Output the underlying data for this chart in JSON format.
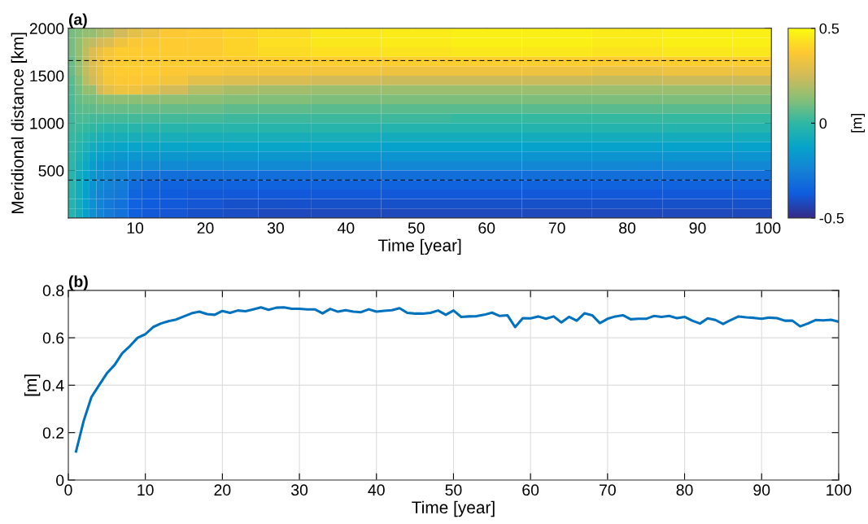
{
  "chart_data": [
    {
      "type": "heatmap",
      "title": "(a)",
      "xlabel": "Time [year]",
      "ylabel": "Meridional distance [km]",
      "clabel": "[m]",
      "xlim": [
        0.5,
        100.5
      ],
      "ylim": [
        0,
        2000
      ],
      "xticks": [
        10,
        20,
        30,
        40,
        50,
        60,
        70,
        80,
        90,
        100
      ],
      "yticks": [
        500,
        1000,
        1500,
        2000
      ],
      "clim": [
        -0.5,
        0.5
      ],
      "cticks": [
        -0.5,
        0,
        0.5
      ],
      "x": [
        1,
        2,
        3,
        4,
        5,
        6,
        8,
        10,
        12,
        15,
        20,
        25,
        30,
        40,
        50,
        60,
        70,
        80,
        90,
        100
      ],
      "y": [
        1950,
        1850,
        1750,
        1650,
        1550,
        1450,
        1350,
        1250,
        1150,
        1050,
        950,
        850,
        750,
        650,
        550,
        450,
        350,
        250,
        150,
        50
      ],
      "cells": [
        [
          0.1,
          0.12,
          0.15,
          0.15,
          0.18,
          0.2,
          0.25,
          0.3,
          0.33,
          0.37,
          0.38,
          0.4,
          0.42,
          0.45,
          0.46,
          0.47,
          0.47,
          0.46,
          0.47,
          0.47
        ],
        [
          0.1,
          0.15,
          0.2,
          0.22,
          0.25,
          0.28,
          0.33,
          0.36,
          0.37,
          0.38,
          0.38,
          0.4,
          0.43,
          0.45,
          0.46,
          0.47,
          0.47,
          0.46,
          0.47,
          0.47
        ],
        [
          0.1,
          0.15,
          0.22,
          0.28,
          0.32,
          0.35,
          0.38,
          0.38,
          0.38,
          0.38,
          0.38,
          0.4,
          0.42,
          0.43,
          0.44,
          0.45,
          0.45,
          0.44,
          0.45,
          0.45
        ],
        [
          0.08,
          0.15,
          0.22,
          0.28,
          0.33,
          0.36,
          0.38,
          0.38,
          0.38,
          0.38,
          0.38,
          0.38,
          0.39,
          0.39,
          0.39,
          0.39,
          0.39,
          0.38,
          0.39,
          0.39
        ],
        [
          0.08,
          0.15,
          0.22,
          0.27,
          0.32,
          0.36,
          0.38,
          0.38,
          0.38,
          0.37,
          0.36,
          0.35,
          0.35,
          0.34,
          0.33,
          0.33,
          0.33,
          0.32,
          0.33,
          0.33
        ],
        [
          0.06,
          0.12,
          0.2,
          0.25,
          0.3,
          0.35,
          0.37,
          0.37,
          0.36,
          0.34,
          0.3,
          0.28,
          0.27,
          0.25,
          0.24,
          0.24,
          0.24,
          0.23,
          0.24,
          0.24
        ],
        [
          0.05,
          0.1,
          0.15,
          0.15,
          0.25,
          0.3,
          0.33,
          0.33,
          0.3,
          0.25,
          0.2,
          0.18,
          0.17,
          0.16,
          0.16,
          0.16,
          0.16,
          0.16,
          0.16,
          0.16
        ],
        [
          0.04,
          0.08,
          0.1,
          0.1,
          0.12,
          0.13,
          0.14,
          0.13,
          0.14,
          0.14,
          0.13,
          0.12,
          0.12,
          0.11,
          0.11,
          0.11,
          0.11,
          0.11,
          0.11,
          0.11
        ],
        [
          0.03,
          0.06,
          0.07,
          0.07,
          0.08,
          0.08,
          0.08,
          0.08,
          0.08,
          0.08,
          0.08,
          0.07,
          0.07,
          0.06,
          0.06,
          0.06,
          0.06,
          0.06,
          0.06,
          0.06
        ],
        [
          0.02,
          0.04,
          0.04,
          0.03,
          0.03,
          0.03,
          0.03,
          0.03,
          0.03,
          0.03,
          0.03,
          0.02,
          0.02,
          0.02,
          0.02,
          0.01,
          0.01,
          0.01,
          0.01,
          0.01
        ],
        [
          0.02,
          0.02,
          0.01,
          0,
          -0.01,
          -0.02,
          -0.02,
          -0.02,
          -0.02,
          -0.02,
          -0.02,
          -0.02,
          -0.02,
          -0.02,
          -0.03,
          -0.03,
          -0.03,
          -0.03,
          -0.03,
          -0.03
        ],
        [
          0.01,
          0,
          -0.02,
          -0.04,
          -0.06,
          -0.07,
          -0.07,
          -0.07,
          -0.07,
          -0.07,
          -0.07,
          -0.07,
          -0.07,
          -0.07,
          -0.08,
          -0.08,
          -0.08,
          -0.08,
          -0.08,
          -0.08
        ],
        [
          0,
          -0.02,
          -0.05,
          -0.08,
          -0.1,
          -0.11,
          -0.12,
          -0.12,
          -0.12,
          -0.12,
          -0.12,
          -0.12,
          -0.12,
          -0.12,
          -0.13,
          -0.13,
          -0.13,
          -0.13,
          -0.13,
          -0.13
        ],
        [
          0,
          -0.04,
          -0.08,
          -0.12,
          -0.14,
          -0.16,
          -0.17,
          -0.17,
          -0.17,
          -0.17,
          -0.17,
          -0.17,
          -0.17,
          -0.18,
          -0.18,
          -0.18,
          -0.18,
          -0.18,
          -0.18,
          -0.18
        ],
        [
          -0.01,
          -0.06,
          -0.1,
          -0.15,
          -0.18,
          -0.2,
          -0.21,
          -0.21,
          -0.22,
          -0.22,
          -0.22,
          -0.22,
          -0.22,
          -0.23,
          -0.23,
          -0.23,
          -0.23,
          -0.23,
          -0.23,
          -0.23
        ],
        [
          -0.02,
          -0.08,
          -0.12,
          -0.17,
          -0.2,
          -0.22,
          -0.24,
          -0.27,
          -0.3,
          -0.31,
          -0.31,
          -0.31,
          -0.31,
          -0.31,
          -0.31,
          -0.31,
          -0.31,
          -0.31,
          -0.31,
          -0.31
        ],
        [
          -0.02,
          -0.08,
          -0.13,
          -0.18,
          -0.22,
          -0.24,
          -0.26,
          -0.32,
          -0.34,
          -0.35,
          -0.35,
          -0.35,
          -0.35,
          -0.35,
          -0.35,
          -0.35,
          -0.35,
          -0.35,
          -0.35,
          -0.35
        ],
        [
          -0.03,
          -0.08,
          -0.14,
          -0.2,
          -0.24,
          -0.26,
          -0.28,
          -0.34,
          -0.36,
          -0.37,
          -0.38,
          -0.38,
          -0.38,
          -0.38,
          -0.38,
          -0.38,
          -0.38,
          -0.38,
          -0.38,
          -0.38
        ],
        [
          -0.03,
          -0.08,
          -0.14,
          -0.2,
          -0.24,
          -0.27,
          -0.3,
          -0.35,
          -0.37,
          -0.38,
          -0.39,
          -0.4,
          -0.4,
          -0.4,
          -0.4,
          -0.4,
          -0.4,
          -0.4,
          -0.4,
          -0.4
        ],
        [
          -0.03,
          -0.08,
          -0.14,
          -0.2,
          -0.24,
          -0.27,
          -0.3,
          -0.36,
          -0.38,
          -0.39,
          -0.4,
          -0.41,
          -0.42,
          -0.42,
          -0.42,
          -0.42,
          -0.42,
          -0.42,
          -0.42,
          -0.42
        ]
      ],
      "ref_lines": [
        {
          "axis": "y",
          "value": 1660,
          "color": "#000000",
          "line_style": "dashed"
        },
        {
          "axis": "y",
          "value": 400,
          "color": "#000000",
          "line_style": "dashed"
        }
      ]
    },
    {
      "type": "line",
      "title": "(b)",
      "xlabel": "Time [year]",
      "ylabel": "[m]",
      "xlim": [
        0,
        100
      ],
      "ylim": [
        0,
        0.8
      ],
      "xticks": [
        0,
        10,
        20,
        30,
        40,
        50,
        60,
        70,
        80,
        90,
        100
      ],
      "yticks": [
        0,
        0.2,
        0.4,
        0.6,
        0.8
      ],
      "grid": true,
      "marker": "none",
      "line_style": "solid",
      "series": [
        {
          "color": "#0072bd",
          "x": [
            1,
            2,
            3,
            4,
            5,
            6,
            7,
            8,
            9,
            10,
            11,
            12,
            13,
            14,
            15,
            16,
            17,
            18,
            19,
            20,
            21,
            22,
            23,
            24,
            25,
            26,
            27,
            28,
            29,
            30,
            31,
            32,
            33,
            34,
            35,
            36,
            37,
            38,
            39,
            40,
            41,
            42,
            43,
            44,
            45,
            46,
            47,
            48,
            49,
            50,
            51,
            52,
            53,
            54,
            55,
            56,
            57,
            58,
            59,
            60,
            61,
            62,
            63,
            64,
            65,
            66,
            67,
            68,
            69,
            70,
            71,
            72,
            73,
            74,
            75,
            76,
            77,
            78,
            79,
            80,
            81,
            82,
            83,
            84,
            85,
            86,
            87,
            88,
            89,
            90,
            91,
            92,
            93,
            94,
            95,
            96,
            97,
            98,
            99,
            100
          ],
          "values": [
            0.12,
            0.25,
            0.35,
            0.4,
            0.45,
            0.485,
            0.535,
            0.565,
            0.6,
            0.615,
            0.645,
            0.66,
            0.67,
            0.677,
            0.69,
            0.703,
            0.71,
            0.7,
            0.697,
            0.713,
            0.705,
            0.715,
            0.712,
            0.72,
            0.728,
            0.718,
            0.727,
            0.728,
            0.722,
            0.722,
            0.72,
            0.72,
            0.703,
            0.722,
            0.71,
            0.716,
            0.71,
            0.708,
            0.72,
            0.71,
            0.714,
            0.716,
            0.725,
            0.705,
            0.702,
            0.702,
            0.705,
            0.715,
            0.697,
            0.715,
            0.688,
            0.69,
            0.691,
            0.697,
            0.706,
            0.692,
            0.695,
            0.645,
            0.683,
            0.682,
            0.69,
            0.68,
            0.69,
            0.665,
            0.688,
            0.672,
            0.703,
            0.695,
            0.662,
            0.68,
            0.69,
            0.695,
            0.678,
            0.68,
            0.68,
            0.692,
            0.688,
            0.692,
            0.683,
            0.688,
            0.672,
            0.66,
            0.682,
            0.675,
            0.658,
            0.675,
            0.69,
            0.686,
            0.684,
            0.68,
            0.685,
            0.683,
            0.672,
            0.672,
            0.648,
            0.66,
            0.675,
            0.673,
            0.676,
            0.668
          ]
        }
      ]
    }
  ]
}
